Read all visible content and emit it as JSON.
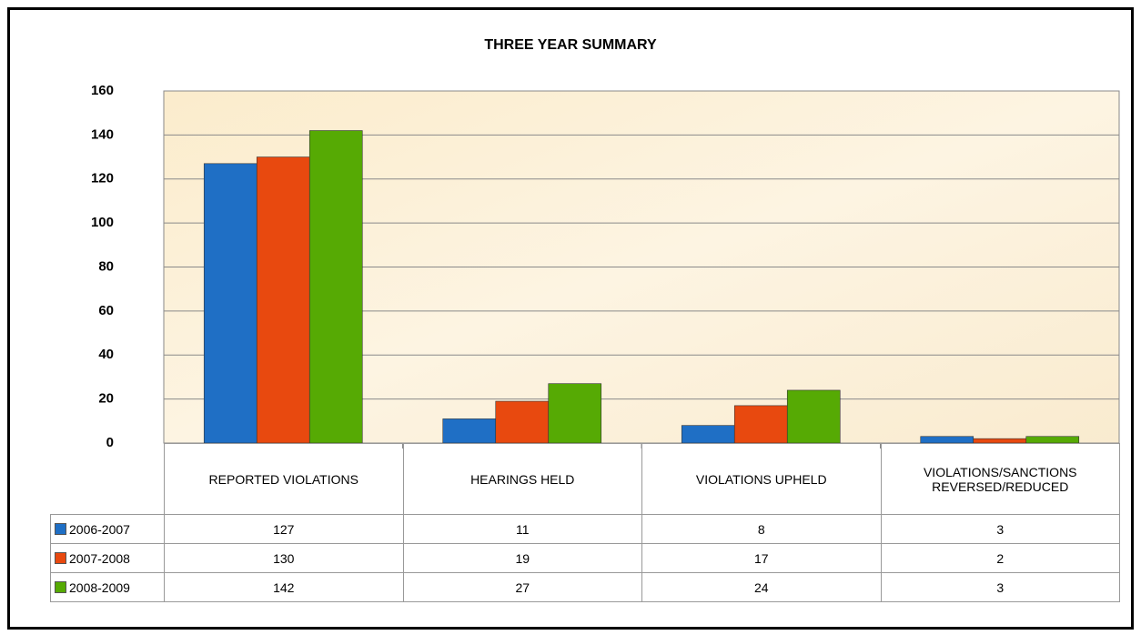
{
  "chart_data": {
    "type": "bar",
    "title": "THREE YEAR  SUMMARY",
    "categories": [
      "REPORTED VIOLATIONS",
      "HEARINGS HELD",
      "VIOLATIONS UPHELD",
      "VIOLATIONS/SANCTIONS REVERSED/REDUCED"
    ],
    "series": [
      {
        "name": "2006-2007",
        "color": "#1f6fc5",
        "values": [
          127,
          11,
          8,
          3
        ]
      },
      {
        "name": "2007-2008",
        "color": "#e8490f",
        "values": [
          130,
          19,
          17,
          2
        ]
      },
      {
        "name": "2008-2009",
        "color": "#56aa04",
        "values": [
          142,
          27,
          24,
          3
        ]
      }
    ],
    "ylim": [
      0,
      160
    ],
    "yticks": [
      0,
      20,
      40,
      60,
      80,
      100,
      120,
      140,
      160
    ],
    "grid": true
  }
}
